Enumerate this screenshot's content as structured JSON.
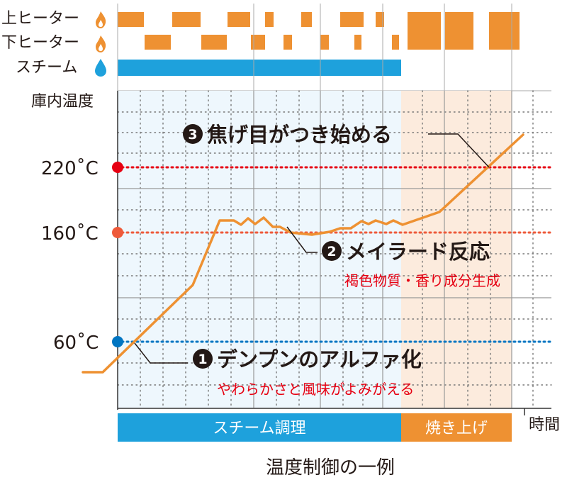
{
  "heaters": {
    "upper_label": "上ヒーター",
    "lower_label": "下ヒーター",
    "steam_label": "スチーム",
    "upper_icon": "flame-icon",
    "lower_icon": "flame-icon",
    "steam_icon": "water-drop-icon"
  },
  "colors": {
    "orange": "#EE9132",
    "blue": "#1EA1DC",
    "red": "#E60012",
    "coral": "#EE5A3A",
    "dot_blue": "#0075C2",
    "steam_zone": "#EEF7FD",
    "bake_zone": "#FCEBDD",
    "text_red": "#E60012"
  },
  "chart": {
    "y_title": "庫内温度",
    "x_title": "時間",
    "t220": "220˚C",
    "t160": "160˚C",
    "t60": "60˚C",
    "phase_steam": "スチーム調理",
    "phase_bake": "焼き上げ",
    "caption": "温度制御の一例"
  },
  "annotations": {
    "a1_num": "1",
    "a1_title": "デンプンのアルファ化",
    "a1_sub": "やわらかさと風味がよみがえる",
    "a2_num": "2",
    "a2_title": "メイラード反応",
    "a2_sub": "褐色物質・香り成分生成",
    "a3_num": "3",
    "a3_title": "焦げ目がつき始める"
  }
}
